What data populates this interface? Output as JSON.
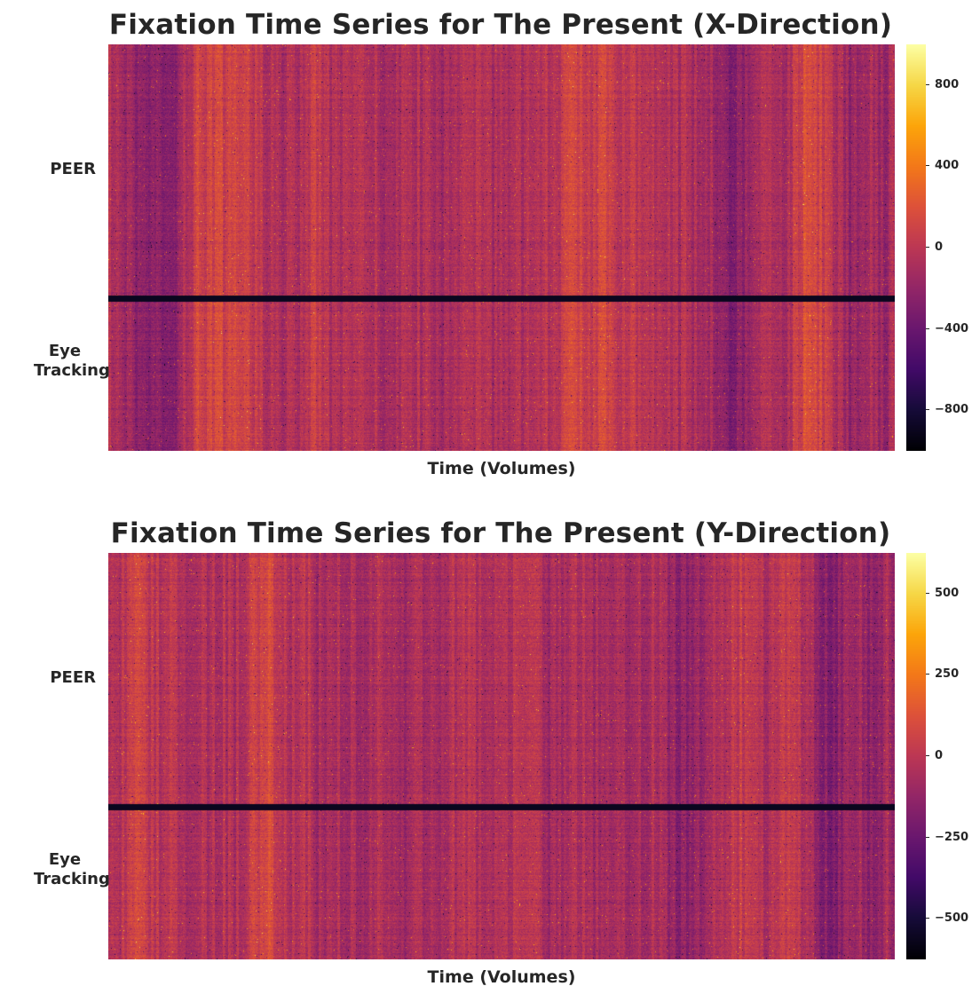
{
  "chart_data": [
    {
      "type": "heatmap",
      "title": "Fixation Time Series for The Present (X-Direction)",
      "xlabel": "Time (Volumes)",
      "ylabel": "",
      "row_groups": [
        "PEER",
        "Eye Tracking"
      ],
      "colormap": "inferno",
      "colorbar": {
        "vmin": -1000,
        "vmax": 1000,
        "ticks": [
          800,
          400,
          0,
          -400,
          -800
        ]
      },
      "stripe_profile": [
        0.02,
        -0.05,
        -0.1,
        -0.35,
        -0.4,
        -0.2,
        -0.45,
        -0.4,
        0.0,
        0.1,
        0.35,
        0.3,
        0.4,
        0.25,
        0.3,
        0.35,
        0.2,
        0.1,
        0.05,
        0.0,
        -0.05,
        0.05,
        0.15,
        0.25,
        0.05,
        -0.05,
        0.1,
        -0.05,
        0.0,
        0.05,
        -0.05,
        0.0,
        -0.05,
        0.0,
        0.05,
        -0.02,
        0.0,
        -0.05,
        0.05,
        0.0,
        -0.02,
        0.05,
        0.0,
        -0.05,
        0.05,
        0.15,
        0.0,
        0.0,
        0.1,
        0.05,
        0.15,
        0.3,
        0.35,
        0.25,
        0.25,
        0.3,
        0.2,
        0.15,
        0.3,
        0.1,
        0.05,
        0.2,
        0.1,
        0.0,
        0.05,
        -0.05,
        0.0,
        -0.05,
        -0.3,
        -0.4,
        -0.25,
        -0.2,
        -0.05,
        0.0,
        0.05,
        -0.05,
        0.2,
        0.4,
        0.35,
        0.3,
        0.05,
        0.0,
        -0.2,
        -0.2,
        -0.05,
        -0.05,
        -0.3,
        0.0
      ],
      "separator_after_fraction": 0.625
    },
    {
      "type": "heatmap",
      "title": "Fixation Time Series for The Present (Y-Direction)",
      "xlabel": "Time (Volumes)",
      "ylabel": "",
      "row_groups": [
        "PEER",
        "Eye Tracking"
      ],
      "colormap": "inferno",
      "colorbar": {
        "vmin": -625,
        "vmax": 625,
        "ticks": [
          500,
          250,
          0,
          -250,
          -500
        ]
      },
      "stripe_profile": [
        0.05,
        0.1,
        0.15,
        0.3,
        0.2,
        0.15,
        0.05,
        0.1,
        0.0,
        -0.05,
        0.1,
        0.0,
        0.05,
        0.05,
        0.0,
        0.05,
        0.25,
        0.3,
        0.35,
        0.25,
        0.05,
        0.0,
        0.1,
        -0.05,
        -0.1,
        0.0,
        -0.05,
        0.0,
        -0.1,
        0.05,
        0.0,
        -0.05,
        -0.1,
        -0.15,
        -0.05,
        0.0,
        -0.05,
        0.0,
        0.05,
        0.1,
        0.05,
        0.0,
        0.1,
        0.05,
        0.0,
        0.05,
        0.15,
        0.05,
        0.0,
        -0.1,
        -0.05,
        0.05,
        0.0,
        0.0,
        -0.05,
        0.05,
        0.0,
        0.0,
        -0.1,
        -0.05,
        0.0,
        -0.05,
        -0.2,
        -0.3,
        -0.25,
        -0.15,
        -0.1,
        0.0,
        0.05,
        0.1,
        0.2,
        0.15,
        0.05,
        0.0,
        0.05,
        0.2,
        0.25,
        0.05,
        -0.1,
        -0.35,
        -0.4,
        -0.3,
        -0.2,
        -0.1,
        -0.25,
        -0.2,
        -0.05,
        -0.1
      ],
      "separator_after_fraction": 0.625
    }
  ]
}
